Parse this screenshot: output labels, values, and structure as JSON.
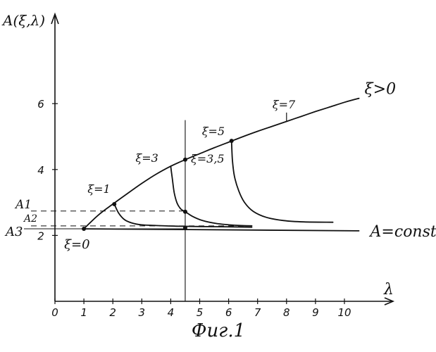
{
  "chart_data": {
    "type": "line",
    "title": "",
    "caption": "Фиг.1",
    "xlabel": "λ",
    "ylabel": "A(ξ,λ)",
    "xlim": [
      0,
      10.6
    ],
    "ylim": [
      0,
      8.5
    ],
    "x_ticks": [
      "0",
      "1",
      "2",
      "3",
      "4",
      "5",
      "6",
      "7",
      "8",
      "9",
      "10"
    ],
    "y_ticks": [
      {
        "label": "2",
        "value": 2
      },
      {
        "label": "4",
        "value": 4
      },
      {
        "label": "6",
        "value": 6
      }
    ],
    "grid": false,
    "series": [
      {
        "name": "ξ>0",
        "x": [
          1,
          1.5,
          2,
          2.5,
          3,
          3.5,
          4,
          4.5,
          5,
          5.5,
          6,
          6.5,
          7,
          7.5,
          8,
          8.5,
          9,
          9.5,
          10,
          10.5
        ],
        "y": [
          2.2,
          2.62,
          2.95,
          3.27,
          3.58,
          3.86,
          4.1,
          4.3,
          4.48,
          4.66,
          4.83,
          5.0,
          5.16,
          5.31,
          5.46,
          5.61,
          5.76,
          5.9,
          6.04,
          6.16
        ]
      },
      {
        "name": "A=const",
        "x": [
          1,
          10.5
        ],
        "y": [
          2.2,
          2.14
        ]
      },
      {
        "name": "ξ=1",
        "x": [
          2.05,
          2.2,
          2.4,
          2.65,
          3.0,
          3.5,
          4.2,
          5.0,
          6.0,
          6.8
        ],
        "y": [
          2.95,
          2.68,
          2.48,
          2.38,
          2.32,
          2.3,
          2.28,
          2.27,
          2.26,
          2.25
        ]
      },
      {
        "name": "ξ=3",
        "x": [
          4.0,
          4.05,
          4.12,
          4.22,
          4.35,
          4.5,
          4.75,
          5.1,
          5.6,
          6.2,
          6.8
        ],
        "y": [
          4.1,
          3.75,
          3.3,
          2.98,
          2.8,
          2.72,
          2.58,
          2.45,
          2.36,
          2.31,
          2.29
        ]
      },
      {
        "name": "ξ=5",
        "x": [
          6.1,
          6.13,
          6.2,
          6.35,
          6.55,
          6.85,
          7.3,
          7.9,
          8.6,
          9.6
        ],
        "y": [
          4.87,
          4.3,
          3.8,
          3.35,
          3.0,
          2.73,
          2.55,
          2.45,
          2.41,
          2.4
        ]
      }
    ],
    "markers": [
      {
        "x": 1,
        "y": 2.2
      },
      {
        "x": 2.05,
        "y": 2.95
      },
      {
        "x": 4.5,
        "y": 4.3
      },
      {
        "x": 6.1,
        "y": 4.87
      },
      {
        "x": 4.5,
        "y": 2.72
      },
      {
        "x": 4.5,
        "y": 2.23
      }
    ],
    "vertical_line_x": 4.5,
    "reference_levels": [
      {
        "label": "A1",
        "value": 2.74,
        "style": "dashed"
      },
      {
        "label": "A2",
        "value": 2.29,
        "style": "dashed"
      },
      {
        "label": "A3",
        "value": 2.2,
        "style": "solid"
      }
    ],
    "annotations": [
      {
        "text": "ξ=0",
        "x": 1,
        "y": 2.2
      },
      {
        "text": "ξ=1",
        "x": 2.05,
        "y": 2.95
      },
      {
        "text": "ξ=3",
        "x": 4.0,
        "y": 4.1
      },
      {
        "text": "ξ=3,5",
        "x": 4.5,
        "y": 4.3
      },
      {
        "text": "ξ=5",
        "x": 6.1,
        "y": 4.87
      },
      {
        "text": "ξ=7",
        "x": 8.0,
        "y": 5.6
      },
      {
        "text": "ξ>0",
        "x": 10.5,
        "y": 6.16
      },
      {
        "text": "A=const",
        "x": 10.5,
        "y": 2.14
      }
    ],
    "colors": {
      "ink": "#111111",
      "background": "#ffffff"
    }
  }
}
